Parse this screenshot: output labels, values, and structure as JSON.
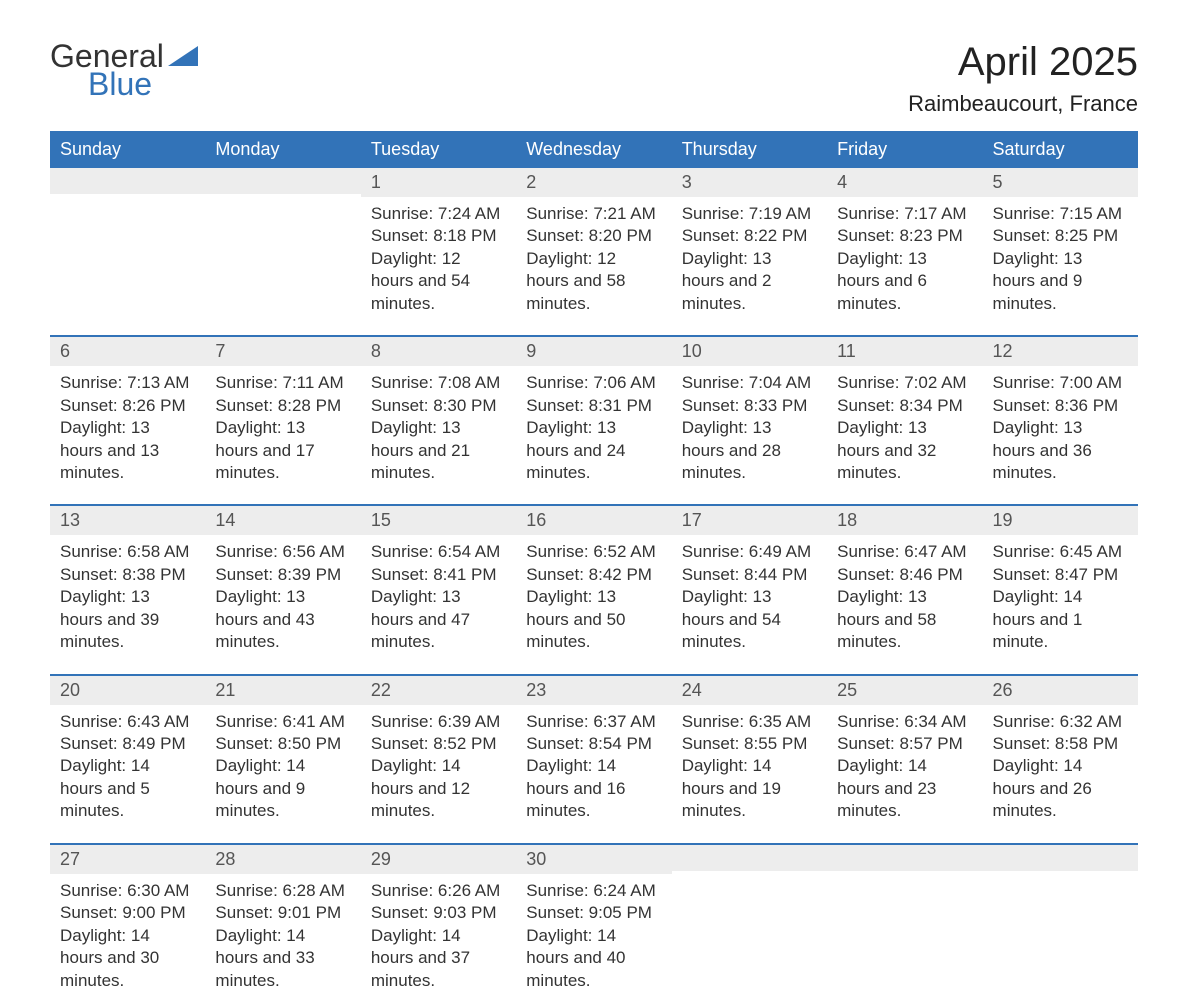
{
  "brand": {
    "word1": "General",
    "word2": "Blue",
    "text_color": "#333333",
    "accent_color": "#3273b8"
  },
  "title": "April 2025",
  "location": "Raimbeaucourt, France",
  "header_bg": "#3273b8",
  "header_fg": "#ffffff",
  "daynum_bg": "#ededed",
  "rule_color": "#3273b8",
  "body_bg": "#ffffff",
  "text_color": "#333333",
  "font_family": "Arial, Helvetica, sans-serif",
  "title_fontsize": 40,
  "location_fontsize": 22,
  "header_fontsize": 18,
  "body_fontsize": 17,
  "day_names": [
    "Sunday",
    "Monday",
    "Tuesday",
    "Wednesday",
    "Thursday",
    "Friday",
    "Saturday"
  ],
  "weeks": [
    [
      {
        "n": "",
        "sunrise": "",
        "sunset": "",
        "daylight": ""
      },
      {
        "n": "",
        "sunrise": "",
        "sunset": "",
        "daylight": ""
      },
      {
        "n": "1",
        "sunrise": "Sunrise: 7:24 AM",
        "sunset": "Sunset: 8:18 PM",
        "daylight": "Daylight: 12 hours and 54 minutes."
      },
      {
        "n": "2",
        "sunrise": "Sunrise: 7:21 AM",
        "sunset": "Sunset: 8:20 PM",
        "daylight": "Daylight: 12 hours and 58 minutes."
      },
      {
        "n": "3",
        "sunrise": "Sunrise: 7:19 AM",
        "sunset": "Sunset: 8:22 PM",
        "daylight": "Daylight: 13 hours and 2 minutes."
      },
      {
        "n": "4",
        "sunrise": "Sunrise: 7:17 AM",
        "sunset": "Sunset: 8:23 PM",
        "daylight": "Daylight: 13 hours and 6 minutes."
      },
      {
        "n": "5",
        "sunrise": "Sunrise: 7:15 AM",
        "sunset": "Sunset: 8:25 PM",
        "daylight": "Daylight: 13 hours and 9 minutes."
      }
    ],
    [
      {
        "n": "6",
        "sunrise": "Sunrise: 7:13 AM",
        "sunset": "Sunset: 8:26 PM",
        "daylight": "Daylight: 13 hours and 13 minutes."
      },
      {
        "n": "7",
        "sunrise": "Sunrise: 7:11 AM",
        "sunset": "Sunset: 8:28 PM",
        "daylight": "Daylight: 13 hours and 17 minutes."
      },
      {
        "n": "8",
        "sunrise": "Sunrise: 7:08 AM",
        "sunset": "Sunset: 8:30 PM",
        "daylight": "Daylight: 13 hours and 21 minutes."
      },
      {
        "n": "9",
        "sunrise": "Sunrise: 7:06 AM",
        "sunset": "Sunset: 8:31 PM",
        "daylight": "Daylight: 13 hours and 24 minutes."
      },
      {
        "n": "10",
        "sunrise": "Sunrise: 7:04 AM",
        "sunset": "Sunset: 8:33 PM",
        "daylight": "Daylight: 13 hours and 28 minutes."
      },
      {
        "n": "11",
        "sunrise": "Sunrise: 7:02 AM",
        "sunset": "Sunset: 8:34 PM",
        "daylight": "Daylight: 13 hours and 32 minutes."
      },
      {
        "n": "12",
        "sunrise": "Sunrise: 7:00 AM",
        "sunset": "Sunset: 8:36 PM",
        "daylight": "Daylight: 13 hours and 36 minutes."
      }
    ],
    [
      {
        "n": "13",
        "sunrise": "Sunrise: 6:58 AM",
        "sunset": "Sunset: 8:38 PM",
        "daylight": "Daylight: 13 hours and 39 minutes."
      },
      {
        "n": "14",
        "sunrise": "Sunrise: 6:56 AM",
        "sunset": "Sunset: 8:39 PM",
        "daylight": "Daylight: 13 hours and 43 minutes."
      },
      {
        "n": "15",
        "sunrise": "Sunrise: 6:54 AM",
        "sunset": "Sunset: 8:41 PM",
        "daylight": "Daylight: 13 hours and 47 minutes."
      },
      {
        "n": "16",
        "sunrise": "Sunrise: 6:52 AM",
        "sunset": "Sunset: 8:42 PM",
        "daylight": "Daylight: 13 hours and 50 minutes."
      },
      {
        "n": "17",
        "sunrise": "Sunrise: 6:49 AM",
        "sunset": "Sunset: 8:44 PM",
        "daylight": "Daylight: 13 hours and 54 minutes."
      },
      {
        "n": "18",
        "sunrise": "Sunrise: 6:47 AM",
        "sunset": "Sunset: 8:46 PM",
        "daylight": "Daylight: 13 hours and 58 minutes."
      },
      {
        "n": "19",
        "sunrise": "Sunrise: 6:45 AM",
        "sunset": "Sunset: 8:47 PM",
        "daylight": "Daylight: 14 hours and 1 minute."
      }
    ],
    [
      {
        "n": "20",
        "sunrise": "Sunrise: 6:43 AM",
        "sunset": "Sunset: 8:49 PM",
        "daylight": "Daylight: 14 hours and 5 minutes."
      },
      {
        "n": "21",
        "sunrise": "Sunrise: 6:41 AM",
        "sunset": "Sunset: 8:50 PM",
        "daylight": "Daylight: 14 hours and 9 minutes."
      },
      {
        "n": "22",
        "sunrise": "Sunrise: 6:39 AM",
        "sunset": "Sunset: 8:52 PM",
        "daylight": "Daylight: 14 hours and 12 minutes."
      },
      {
        "n": "23",
        "sunrise": "Sunrise: 6:37 AM",
        "sunset": "Sunset: 8:54 PM",
        "daylight": "Daylight: 14 hours and 16 minutes."
      },
      {
        "n": "24",
        "sunrise": "Sunrise: 6:35 AM",
        "sunset": "Sunset: 8:55 PM",
        "daylight": "Daylight: 14 hours and 19 minutes."
      },
      {
        "n": "25",
        "sunrise": "Sunrise: 6:34 AM",
        "sunset": "Sunset: 8:57 PM",
        "daylight": "Daylight: 14 hours and 23 minutes."
      },
      {
        "n": "26",
        "sunrise": "Sunrise: 6:32 AM",
        "sunset": "Sunset: 8:58 PM",
        "daylight": "Daylight: 14 hours and 26 minutes."
      }
    ],
    [
      {
        "n": "27",
        "sunrise": "Sunrise: 6:30 AM",
        "sunset": "Sunset: 9:00 PM",
        "daylight": "Daylight: 14 hours and 30 minutes."
      },
      {
        "n": "28",
        "sunrise": "Sunrise: 6:28 AM",
        "sunset": "Sunset: 9:01 PM",
        "daylight": "Daylight: 14 hours and 33 minutes."
      },
      {
        "n": "29",
        "sunrise": "Sunrise: 6:26 AM",
        "sunset": "Sunset: 9:03 PM",
        "daylight": "Daylight: 14 hours and 37 minutes."
      },
      {
        "n": "30",
        "sunrise": "Sunrise: 6:24 AM",
        "sunset": "Sunset: 9:05 PM",
        "daylight": "Daylight: 14 hours and 40 minutes."
      },
      {
        "n": "",
        "sunrise": "",
        "sunset": "",
        "daylight": ""
      },
      {
        "n": "",
        "sunrise": "",
        "sunset": "",
        "daylight": ""
      },
      {
        "n": "",
        "sunrise": "",
        "sunset": "",
        "daylight": ""
      }
    ]
  ]
}
